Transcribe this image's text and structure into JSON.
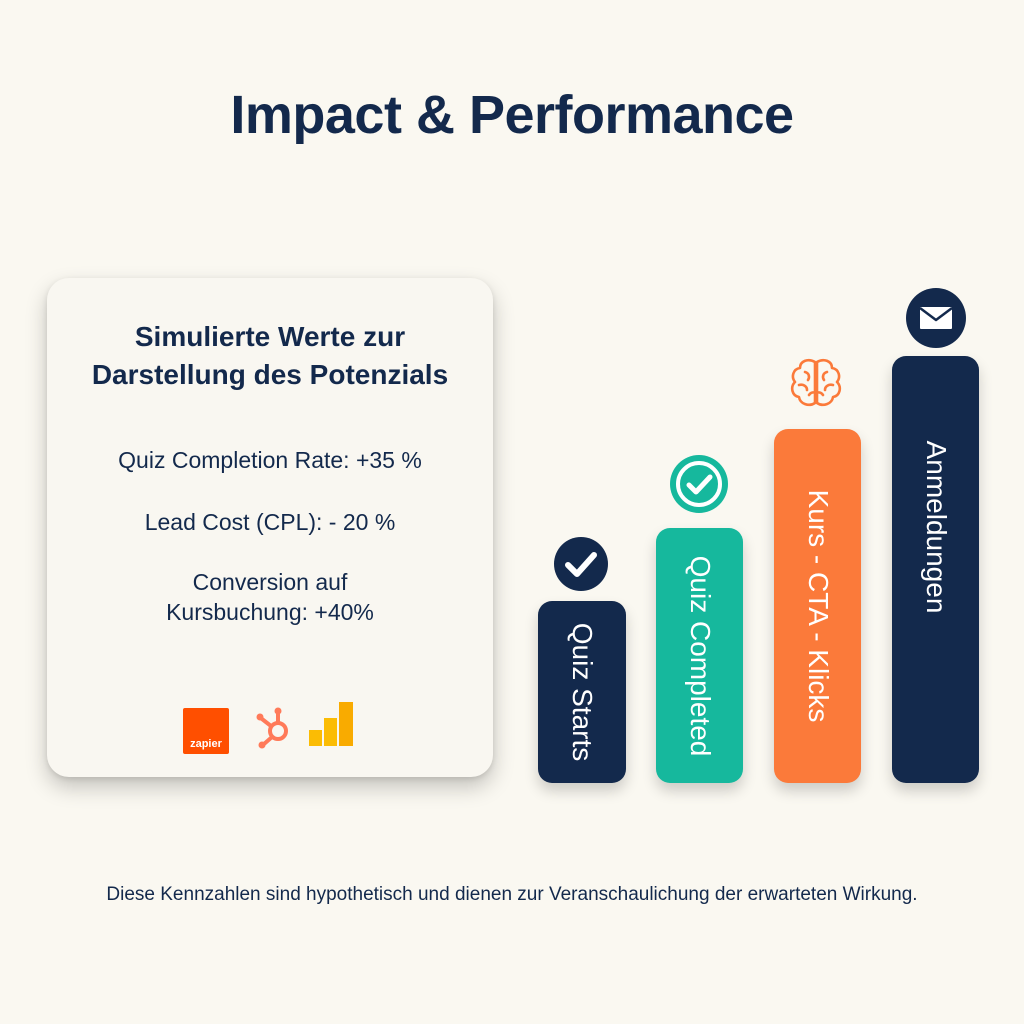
{
  "header": {
    "title": "Impact & Performance"
  },
  "card": {
    "title_lines": [
      "Simulierte Werte zur",
      "Darstellung des Potenzials"
    ],
    "metrics": [
      {
        "lines": [
          "Quiz Completion Rate: +35 %"
        ]
      },
      {
        "lines": [
          "Lead Cost (CPL): - 20 %"
        ]
      },
      {
        "lines": [
          "Conversion auf",
          "Kursbuchung: +40%"
        ]
      }
    ],
    "logos": {
      "zapier_text": "zapier",
      "zapier_color": "#ff4f00",
      "hubspot_color": "#ff7a59",
      "analytics_color_light": "#fbbc04",
      "analytics_color_dark": "#f9ab00"
    }
  },
  "funnel": {
    "bars": [
      {
        "label": "Quiz Starts",
        "color": "#13294c",
        "icon": "check-circle-icon"
      },
      {
        "label": "Quiz Completed",
        "color": "#16b89d",
        "icon": "check-circle-icon"
      },
      {
        "label": "Kurs - CTA - Klicks",
        "color": "#fb7a3a",
        "icon": "brain-icon"
      },
      {
        "label": "Anmeldungen",
        "color": "#13294c",
        "icon": "envelope-icon"
      }
    ]
  },
  "footer": {
    "note": "Diese Kennzahlen sind hypothetisch und dienen zur  Veranschaulichung der erwarteten Wirkung."
  },
  "colors": {
    "background": "#faf8f1",
    "navy": "#13294c",
    "teal": "#16b89d",
    "orange": "#fb7a3a"
  }
}
